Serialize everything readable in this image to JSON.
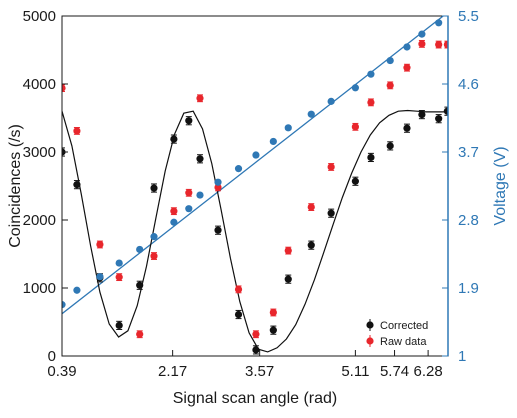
{
  "chart_data": {
    "type": "scatter",
    "title": "",
    "xlabel": "Signal scan angle (rad)",
    "ylabel": "Coincidences (/s)",
    "ylabel_right": "Voltage (V)",
    "xlim": [
      0.39,
      6.6
    ],
    "xticks": [
      0.39,
      2.17,
      3.57,
      5.11,
      5.74,
      6.28
    ],
    "xtick_labels": [
      "0.39",
      "2.17",
      "3.57",
      "5.11",
      "5.74",
      "6.28"
    ],
    "ylim": [
      0,
      5000
    ],
    "yticks": [
      0,
      1000,
      2000,
      3000,
      4000,
      5000
    ],
    "ytick_labels": [
      "0",
      "1000",
      "2000",
      "3000",
      "4000",
      "5000"
    ],
    "ylim_right": [
      1,
      5.5
    ],
    "yticks_right": [
      1,
      1.9,
      2.8,
      3.7,
      4.6,
      5.5
    ],
    "ytick_labels_right": [
      "1",
      "1.9",
      "2.8",
      "3.7",
      "4.6",
      "5.5"
    ],
    "grid": false,
    "legend_position": "bottom-right",
    "colors": {
      "corrected": "#111111",
      "raw": "#e8262c",
      "voltage": "#2f78b5",
      "fit": "#111111",
      "right_axis": "#2f78b5"
    },
    "series": [
      {
        "name": "Corrected",
        "x": [
          0.39,
          0.63,
          1.0,
          1.31,
          1.64,
          1.87,
          2.19,
          2.43,
          2.61,
          2.9,
          3.23,
          3.51,
          3.79,
          4.03,
          4.4,
          4.72,
          5.11,
          5.36,
          5.67,
          5.94,
          6.18,
          6.45,
          6.59
        ],
        "y": [
          3000,
          2520,
          1150,
          450,
          1040,
          2470,
          3190,
          3460,
          2900,
          1850,
          610,
          90,
          380,
          1130,
          1630,
          2100,
          2570,
          2920,
          3090,
          3350,
          3550,
          3490,
          3600
        ],
        "error": 60
      },
      {
        "name": "Raw data",
        "x": [
          0.39,
          0.63,
          1.0,
          1.31,
          1.64,
          1.87,
          2.19,
          2.43,
          2.61,
          2.9,
          3.23,
          3.51,
          3.79,
          4.03,
          4.4,
          4.72,
          5.11,
          5.36,
          5.67,
          5.94,
          6.18,
          6.45,
          6.59
        ],
        "y": [
          3940,
          3310,
          1640,
          1160,
          320,
          1470,
          2130,
          2400,
          3790,
          2480,
          980,
          320,
          640,
          1550,
          2190,
          2780,
          3370,
          3730,
          3980,
          4240,
          4590,
          4580,
          4580
        ],
        "error": 50
      }
    ],
    "voltage_series": {
      "x": [
        0.39,
        0.63,
        1.0,
        1.31,
        1.64,
        1.87,
        2.19,
        2.43,
        2.61,
        2.9,
        3.23,
        3.51,
        3.79,
        4.03,
        4.4,
        4.72,
        5.11,
        5.36,
        5.67,
        5.94,
        6.18,
        6.45,
        6.59
      ],
      "y": [
        1.68,
        1.87,
        2.05,
        2.23,
        2.41,
        2.58,
        2.77,
        2.95,
        3.13,
        3.3,
        3.48,
        3.66,
        3.84,
        4.02,
        4.2,
        4.37,
        4.55,
        4.73,
        4.91,
        5.09,
        5.26,
        5.41,
        5.55
      ],
      "fit": [
        1.56,
        5.55
      ]
    },
    "fit_curve": {
      "x": [
        0.39,
        0.55,
        0.7,
        0.85,
        1.0,
        1.15,
        1.3,
        1.45,
        1.6,
        1.75,
        1.9,
        2.05,
        2.2,
        2.35,
        2.5,
        2.65,
        2.8,
        2.95,
        3.1,
        3.25,
        3.4,
        3.55,
        3.7,
        3.85,
        4.0,
        4.15,
        4.3,
        4.45,
        4.6,
        4.75,
        4.9,
        5.05,
        5.2,
        5.35,
        5.5,
        5.65,
        5.8,
        5.95,
        6.1,
        6.25,
        6.4,
        6.55,
        6.6
      ],
      "y": [
        3600,
        3090,
        2380,
        1620,
        940,
        470,
        280,
        370,
        740,
        1320,
        2030,
        2720,
        3260,
        3570,
        3600,
        3340,
        2830,
        2150,
        1440,
        800,
        340,
        100,
        60,
        120,
        250,
        460,
        760,
        1120,
        1520,
        1930,
        2330,
        2690,
        3000,
        3250,
        3430,
        3540,
        3600,
        3610,
        3600,
        3590,
        3590,
        3590,
        3590
      ]
    }
  }
}
